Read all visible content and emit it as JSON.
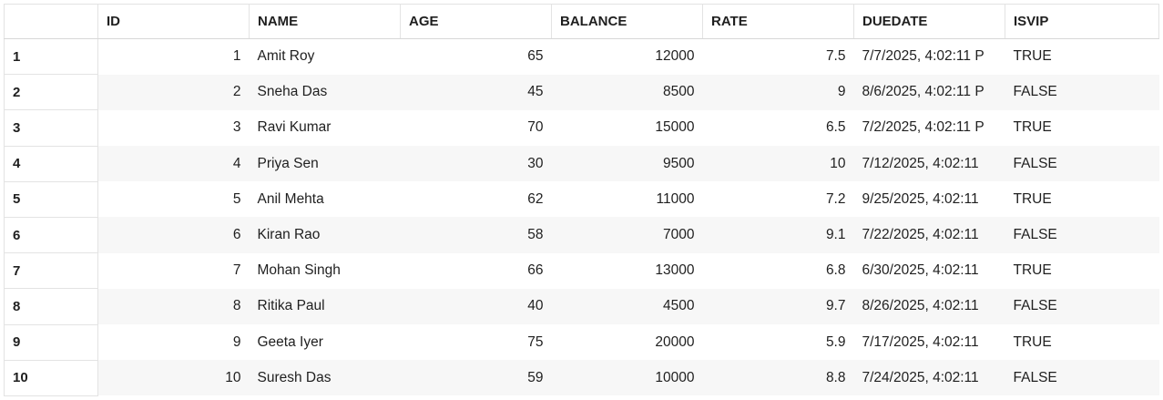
{
  "columns": [
    "",
    "ID",
    "NAME",
    "AGE",
    "BALANCE",
    "RATE",
    "DUEDATE",
    "ISVIP"
  ],
  "rows": [
    {
      "rownum": "1",
      "id": "1",
      "name": "Amit Roy",
      "age": "65",
      "balance": "12000",
      "rate": "7.5",
      "duedate": "7/7/2025, 4:02:11 P",
      "isvip": "TRUE"
    },
    {
      "rownum": "2",
      "id": "2",
      "name": "Sneha Das",
      "age": "45",
      "balance": "8500",
      "rate": "9",
      "duedate": "8/6/2025, 4:02:11 P",
      "isvip": "FALSE"
    },
    {
      "rownum": "3",
      "id": "3",
      "name": "Ravi Kumar",
      "age": "70",
      "balance": "15000",
      "rate": "6.5",
      "duedate": "7/2/2025, 4:02:11 P",
      "isvip": "TRUE"
    },
    {
      "rownum": "4",
      "id": "4",
      "name": "Priya Sen",
      "age": "30",
      "balance": "9500",
      "rate": "10",
      "duedate": "7/12/2025, 4:02:11",
      "isvip": "FALSE"
    },
    {
      "rownum": "5",
      "id": "5",
      "name": "Anil Mehta",
      "age": "62",
      "balance": "11000",
      "rate": "7.2",
      "duedate": "9/25/2025, 4:02:11",
      "isvip": "TRUE"
    },
    {
      "rownum": "6",
      "id": "6",
      "name": "Kiran Rao",
      "age": "58",
      "balance": "7000",
      "rate": "9.1",
      "duedate": "7/22/2025, 4:02:11",
      "isvip": "FALSE"
    },
    {
      "rownum": "7",
      "id": "7",
      "name": "Mohan Singh",
      "age": "66",
      "balance": "13000",
      "rate": "6.8",
      "duedate": "6/30/2025, 4:02:11",
      "isvip": "TRUE"
    },
    {
      "rownum": "8",
      "id": "8",
      "name": "Ritika Paul",
      "age": "40",
      "balance": "4500",
      "rate": "9.7",
      "duedate": "8/26/2025, 4:02:11",
      "isvip": "FALSE"
    },
    {
      "rownum": "9",
      "id": "9",
      "name": "Geeta Iyer",
      "age": "75",
      "balance": "20000",
      "rate": "5.9",
      "duedate": "7/17/2025, 4:02:11",
      "isvip": "TRUE"
    },
    {
      "rownum": "10",
      "id": "10",
      "name": "Suresh Das",
      "age": "59",
      "balance": "10000",
      "rate": "8.8",
      "duedate": "7/24/2025, 4:02:11",
      "isvip": "FALSE"
    }
  ]
}
